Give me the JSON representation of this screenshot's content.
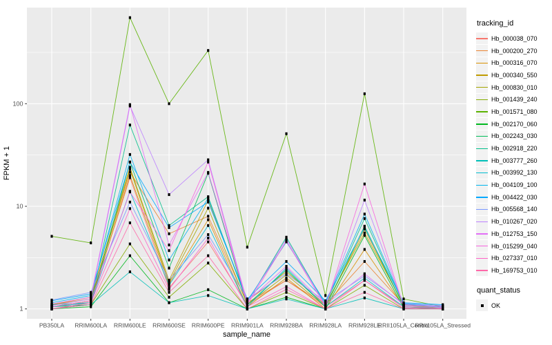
{
  "figure": {
    "panel_bg": "#EBEBEB",
    "grid_color": "#FFFFFF",
    "axis_text_color": "#4D4D4D",
    "tick_color": "#333333",
    "point_color": "#000000",
    "legend_key_bg": "#F2F2F2"
  },
  "legend": {
    "tracking_title": "tracking_id",
    "quant_title": "quant_status",
    "quant_ok_label": "OK"
  },
  "chart_data": {
    "type": "line",
    "title": "",
    "xlabel": "sample_name",
    "ylabel": "FPKM + 1",
    "y_scale": "log10",
    "ylim": [
      0.8,
      865
    ],
    "y_major_ticks": [
      1,
      10,
      100
    ],
    "y_minor_ticks": [
      3.1623,
      31.623,
      316.23
    ],
    "grid": true,
    "legend_position": "right",
    "point_shape": "square",
    "categories": [
      "PB350LA",
      "RRIM600LA",
      "RRIM600LE",
      "RRIM600SE",
      "RRIM600PE",
      "RRIM901LA",
      "RRIM928BA",
      "RRIM928LA",
      "RRIM928LE",
      "RRII105LA_Control",
      "RRII105LA_Stressed"
    ],
    "series": [
      {
        "name": "Hb_000038_070",
        "color": "#F8766D",
        "values": [
          1.05,
          1.2,
          19,
          1.6,
          4.5,
          1.1,
          1.9,
          1.05,
          1.9,
          1.05,
          1.02
        ]
      },
      {
        "name": "Hb_000200_270",
        "color": "#EA8331",
        "values": [
          1.1,
          1.25,
          21.5,
          5.4,
          8.0,
          1.15,
          1.9,
          1.1,
          2.9,
          1.1,
          1.05
        ]
      },
      {
        "name": "Hb_000316_070",
        "color": "#D89000",
        "values": [
          1.0,
          1.15,
          20,
          1.75,
          7.4,
          1.05,
          2.0,
          1.0,
          3.8,
          1.05,
          1.0
        ]
      },
      {
        "name": "Hb_000340_550",
        "color": "#C09B00",
        "values": [
          1.1,
          1.3,
          24,
          1.9,
          11.5,
          1.2,
          2.3,
          1.1,
          5.5,
          1.1,
          1.05
        ]
      },
      {
        "name": "Hb_000830_010",
        "color": "#A3A500",
        "values": [
          1.05,
          1.2,
          23,
          1.8,
          9.6,
          1.1,
          2.15,
          1.05,
          6.0,
          1.08,
          1.02
        ]
      },
      {
        "name": "Hb_001439_240",
        "color": "#85AD00",
        "values": [
          1.0,
          1.1,
          4.3,
          1.3,
          2.8,
          1.0,
          1.45,
          1.0,
          1.7,
          1.0,
          1.0
        ]
      },
      {
        "name": "Hb_001571_080",
        "color": "#5BB300",
        "values": [
          5.1,
          4.4,
          690,
          100,
          330,
          4.0,
          51,
          1.35,
          125,
          1.25,
          1.05
        ]
      },
      {
        "name": "Hb_002170_060",
        "color": "#00B81F",
        "values": [
          1.0,
          1.05,
          3.3,
          1.15,
          1.54,
          1.0,
          1.3,
          1.0,
          5.2,
          1.02,
          1.0
        ]
      },
      {
        "name": "Hb_002243_030",
        "color": "#00BC59",
        "values": [
          1.05,
          1.1,
          27,
          2.5,
          21,
          1.1,
          2.4,
          1.05,
          6.4,
          1.05,
          1.0
        ]
      },
      {
        "name": "Hb_002918_220",
        "color": "#00C08B",
        "values": [
          1.1,
          1.15,
          62,
          6.5,
          12.4,
          1.15,
          5.0,
          1.1,
          7.6,
          1.1,
          1.05
        ]
      },
      {
        "name": "Hb_003777_260",
        "color": "#00C0B8",
        "values": [
          1.0,
          1.1,
          2.3,
          1.15,
          1.35,
          1.0,
          1.25,
          1.0,
          1.28,
          1.0,
          1.0
        ]
      },
      {
        "name": "Hb_003992_130",
        "color": "#00BDD0",
        "values": [
          1.05,
          1.15,
          14,
          1.7,
          6.5,
          1.05,
          2.5,
          1.05,
          2.0,
          1.05,
          1.02
        ]
      },
      {
        "name": "Hb_004109_100",
        "color": "#00B5EE",
        "values": [
          1.15,
          1.35,
          32,
          3.0,
          12,
          1.2,
          4.5,
          1.15,
          8.4,
          1.12,
          1.05
        ]
      },
      {
        "name": "Hb_004422_030",
        "color": "#00A9FF",
        "values": [
          1.2,
          1.4,
          27,
          6.2,
          11,
          1.25,
          2.9,
          1.2,
          6.2,
          1.15,
          1.1
        ]
      },
      {
        "name": "Hb_005568_140",
        "color": "#7997FF",
        "values": [
          1.22,
          1.45,
          11,
          1.9,
          5.3,
          1.25,
          2.2,
          1.18,
          2.1,
          1.13,
          1.08
        ]
      },
      {
        "name": "Hb_010267_020",
        "color": "#BC81FF",
        "values": [
          1.08,
          1.25,
          95,
          13,
          28.4,
          1.15,
          4.8,
          1.08,
          11.5,
          1.08,
          1.04
        ]
      },
      {
        "name": "Hb_012753_150",
        "color": "#E26EF7",
        "values": [
          1.12,
          1.3,
          98,
          4.2,
          21.4,
          1.18,
          2.6,
          1.1,
          2.2,
          1.1,
          1.06
        ]
      },
      {
        "name": "Hb_015299_040",
        "color": "#F863DF",
        "values": [
          1.05,
          1.2,
          13.8,
          3.7,
          27,
          1.1,
          4.6,
          1.05,
          16.5,
          1.05,
          1.02
        ]
      },
      {
        "name": "Hb_027337_010",
        "color": "#FF61C7",
        "values": [
          1.0,
          1.15,
          9.5,
          1.55,
          4.9,
          1.05,
          1.65,
          1.0,
          1.9,
          1.02,
          1.0
        ]
      },
      {
        "name": "Hb_169753_010",
        "color": "#FF68A8",
        "values": [
          1.0,
          1.1,
          6.9,
          1.45,
          3.3,
          1.0,
          1.55,
          1.0,
          1.45,
          1.0,
          1.0
        ]
      }
    ]
  }
}
